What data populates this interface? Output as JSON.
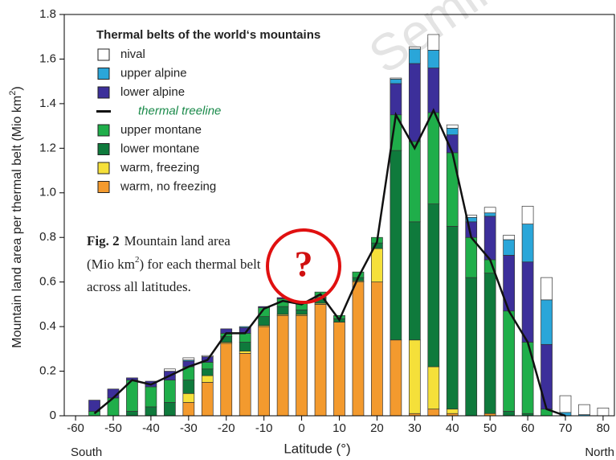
{
  "chart_data": {
    "type": "stacked-bar",
    "legend_title": "Thermal belts of the world‘s mountains",
    "xlabel": "Latitude (°)",
    "ylabel": [
      "Mountain land area per thermal belt (Mio km",
      "2",
      ")"
    ],
    "annotations": {
      "south": "South",
      "north": "North",
      "watermark": "Semin",
      "marker": "?"
    },
    "caption": {
      "bold": "Fig. 2",
      "line1": "Mountain land area",
      "line2a": "(Mio km",
      "line2sup": "2",
      "line2b": ") for each thermal belt",
      "line3": "across all latitudes."
    },
    "x": [
      -55,
      -50,
      -45,
      -40,
      -35,
      -30,
      -25,
      -20,
      -15,
      -10,
      -5,
      0,
      5,
      10,
      15,
      20,
      25,
      30,
      35,
      40,
      45,
      50,
      55,
      60,
      65,
      70,
      75,
      80
    ],
    "xlim": [
      -63,
      83
    ],
    "xticks": [
      -60,
      -50,
      -40,
      -30,
      -20,
      -10,
      0,
      10,
      20,
      30,
      40,
      50,
      60,
      70,
      80
    ],
    "ylim": [
      0,
      1.8
    ],
    "yticks": [
      0,
      0.2,
      0.4,
      0.6,
      0.8,
      {
        "value": 1,
        "label": "1.0"
      },
      1.2,
      1.4,
      1.6,
      1.8
    ],
    "series": [
      {
        "name": "warm, no freezing",
        "color": "#f39a2e",
        "values": [
          0,
          0,
          0,
          0,
          0,
          0.06,
          0.15,
          0.325,
          0.28,
          0.4,
          0.45,
          0.45,
          0.5,
          0.42,
          0.6,
          0.6,
          0.34,
          0.01,
          0.03,
          0.01,
          0,
          0.01,
          0,
          0,
          0,
          0,
          0,
          0
        ]
      },
      {
        "name": "warm, freezing",
        "color": "#f5e03a",
        "values": [
          0,
          0,
          0,
          0,
          0,
          0.04,
          0.03,
          0.005,
          0.01,
          0.005,
          0.005,
          0.005,
          0.005,
          0,
          0.005,
          0.15,
          0,
          0.33,
          0.19,
          0.02,
          0,
          0,
          0,
          0,
          0,
          0,
          0,
          0
        ]
      },
      {
        "name": "lower montane",
        "color": "#0f7a3c",
        "values": [
          0,
          0,
          0.02,
          0.04,
          0.06,
          0.06,
          0.03,
          0.025,
          0.04,
          0.04,
          0.035,
          0.02,
          0.025,
          0.015,
          0.015,
          0.025,
          0.85,
          0.53,
          0.73,
          0.82,
          0.62,
          0.63,
          0.02,
          0.01,
          0,
          0,
          0,
          0
        ]
      },
      {
        "name": "upper montane",
        "color": "#1fae4a",
        "values": [
          0.02,
          0.08,
          0.14,
          0.09,
          0.1,
          0.06,
          0.03,
          0.015,
          0.04,
          0.04,
          0.035,
          0.03,
          0.025,
          0.015,
          0.025,
          0.025,
          0.16,
          0.36,
          0.41,
          0.33,
          0.18,
          0.06,
          0.45,
          0.32,
          0.03,
          0,
          0,
          0
        ]
      },
      {
        "name": "lower alpine",
        "color": "#3c2f9a",
        "values": [
          0.05,
          0.04,
          0.01,
          0.025,
          0.04,
          0.025,
          0.025,
          0.02,
          0.025,
          0.005,
          0.005,
          0,
          0,
          0,
          0,
          0,
          0.14,
          0.35,
          0.2,
          0.08,
          0.07,
          0.195,
          0.25,
          0.36,
          0.29,
          0,
          0,
          0
        ]
      },
      {
        "name": "upper alpine",
        "color": "#2aa6d9",
        "values": [
          0,
          0,
          0,
          0,
          0,
          0.005,
          0,
          0,
          0.005,
          0,
          0,
          0,
          0,
          0,
          0,
          0,
          0.02,
          0.065,
          0.08,
          0.03,
          0.02,
          0.015,
          0.07,
          0.17,
          0.2,
          0.015,
          0.005,
          0
        ]
      },
      {
        "name": "nival",
        "color": "#ffffff",
        "values": [
          0,
          0,
          0,
          0,
          0.01,
          0.01,
          0.005,
          0,
          0,
          0,
          0,
          0,
          0,
          0,
          0,
          0,
          0.005,
          0.01,
          0.07,
          0.015,
          0.01,
          0.025,
          0.02,
          0.08,
          0.1,
          0.075,
          0.045,
          0.035
        ]
      }
    ],
    "line": {
      "name": "thermal treeline",
      "color": "#111111",
      "values": [
        0.01,
        0.08,
        0.16,
        0.14,
        0.18,
        0.22,
        0.25,
        0.37,
        0.37,
        0.48,
        0.515,
        0.5,
        0.545,
        0.43,
        0.62,
        0.78,
        1.35,
        1.2,
        1.37,
        1.18,
        0.8,
        0.7,
        0.47,
        0.33,
        0.03,
        0,
        null,
        null
      ]
    }
  }
}
